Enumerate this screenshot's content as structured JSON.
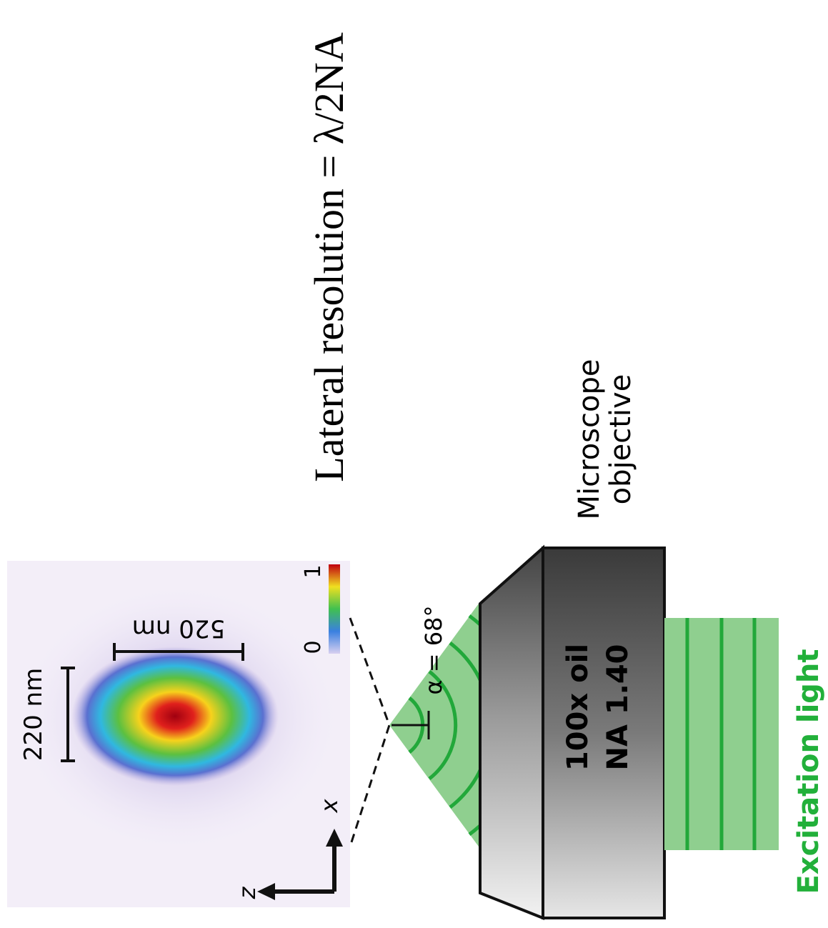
{
  "title": "Lateral resolution = λ/2NA",
  "psf": {
    "lateral_size": "220 nm",
    "axial_size": "520 nm",
    "colorbar_min": "0",
    "colorbar_max": "1",
    "axis_x": "x",
    "axis_z": "z"
  },
  "objective": {
    "label": "Microscope objective",
    "magnification": "100x oil",
    "aperture": "NA 1.40",
    "angle": "α = 68°"
  },
  "light": {
    "label": "Excitation light"
  }
}
